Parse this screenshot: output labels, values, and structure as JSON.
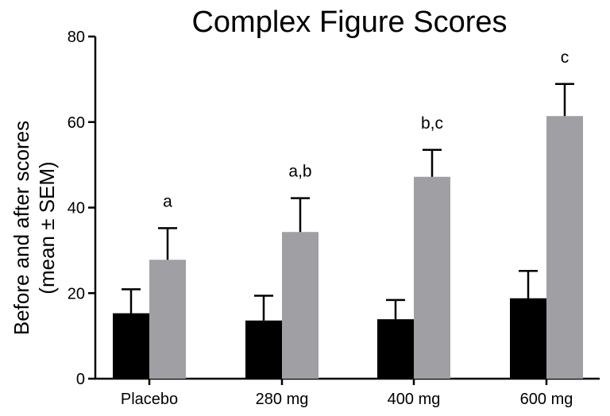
{
  "chart_data": {
    "type": "bar",
    "title": "Complex Figure Scores",
    "ylabel_lines": [
      "Before and after scores",
      "(mean ± SEM)"
    ],
    "xlabel": "",
    "categories": [
      "Placebo",
      "280 mg",
      "400 mg",
      "600 mg"
    ],
    "ylim": [
      0,
      80
    ],
    "yticks": [
      0,
      20,
      40,
      60,
      80
    ],
    "series": [
      {
        "color": "#000000",
        "values": [
          15.3,
          13.6,
          13.9,
          18.8
        ],
        "sem": [
          5.6,
          5.8,
          4.5,
          6.4
        ]
      },
      {
        "color": "#a09fa4",
        "values": [
          27.8,
          34.3,
          47.2,
          61.4
        ],
        "sem": [
          7.4,
          7.9,
          6.3,
          7.5
        ]
      }
    ],
    "annotations": [
      "a",
      "a,b",
      "b,c",
      "c"
    ],
    "grid": false,
    "legend": "none"
  }
}
